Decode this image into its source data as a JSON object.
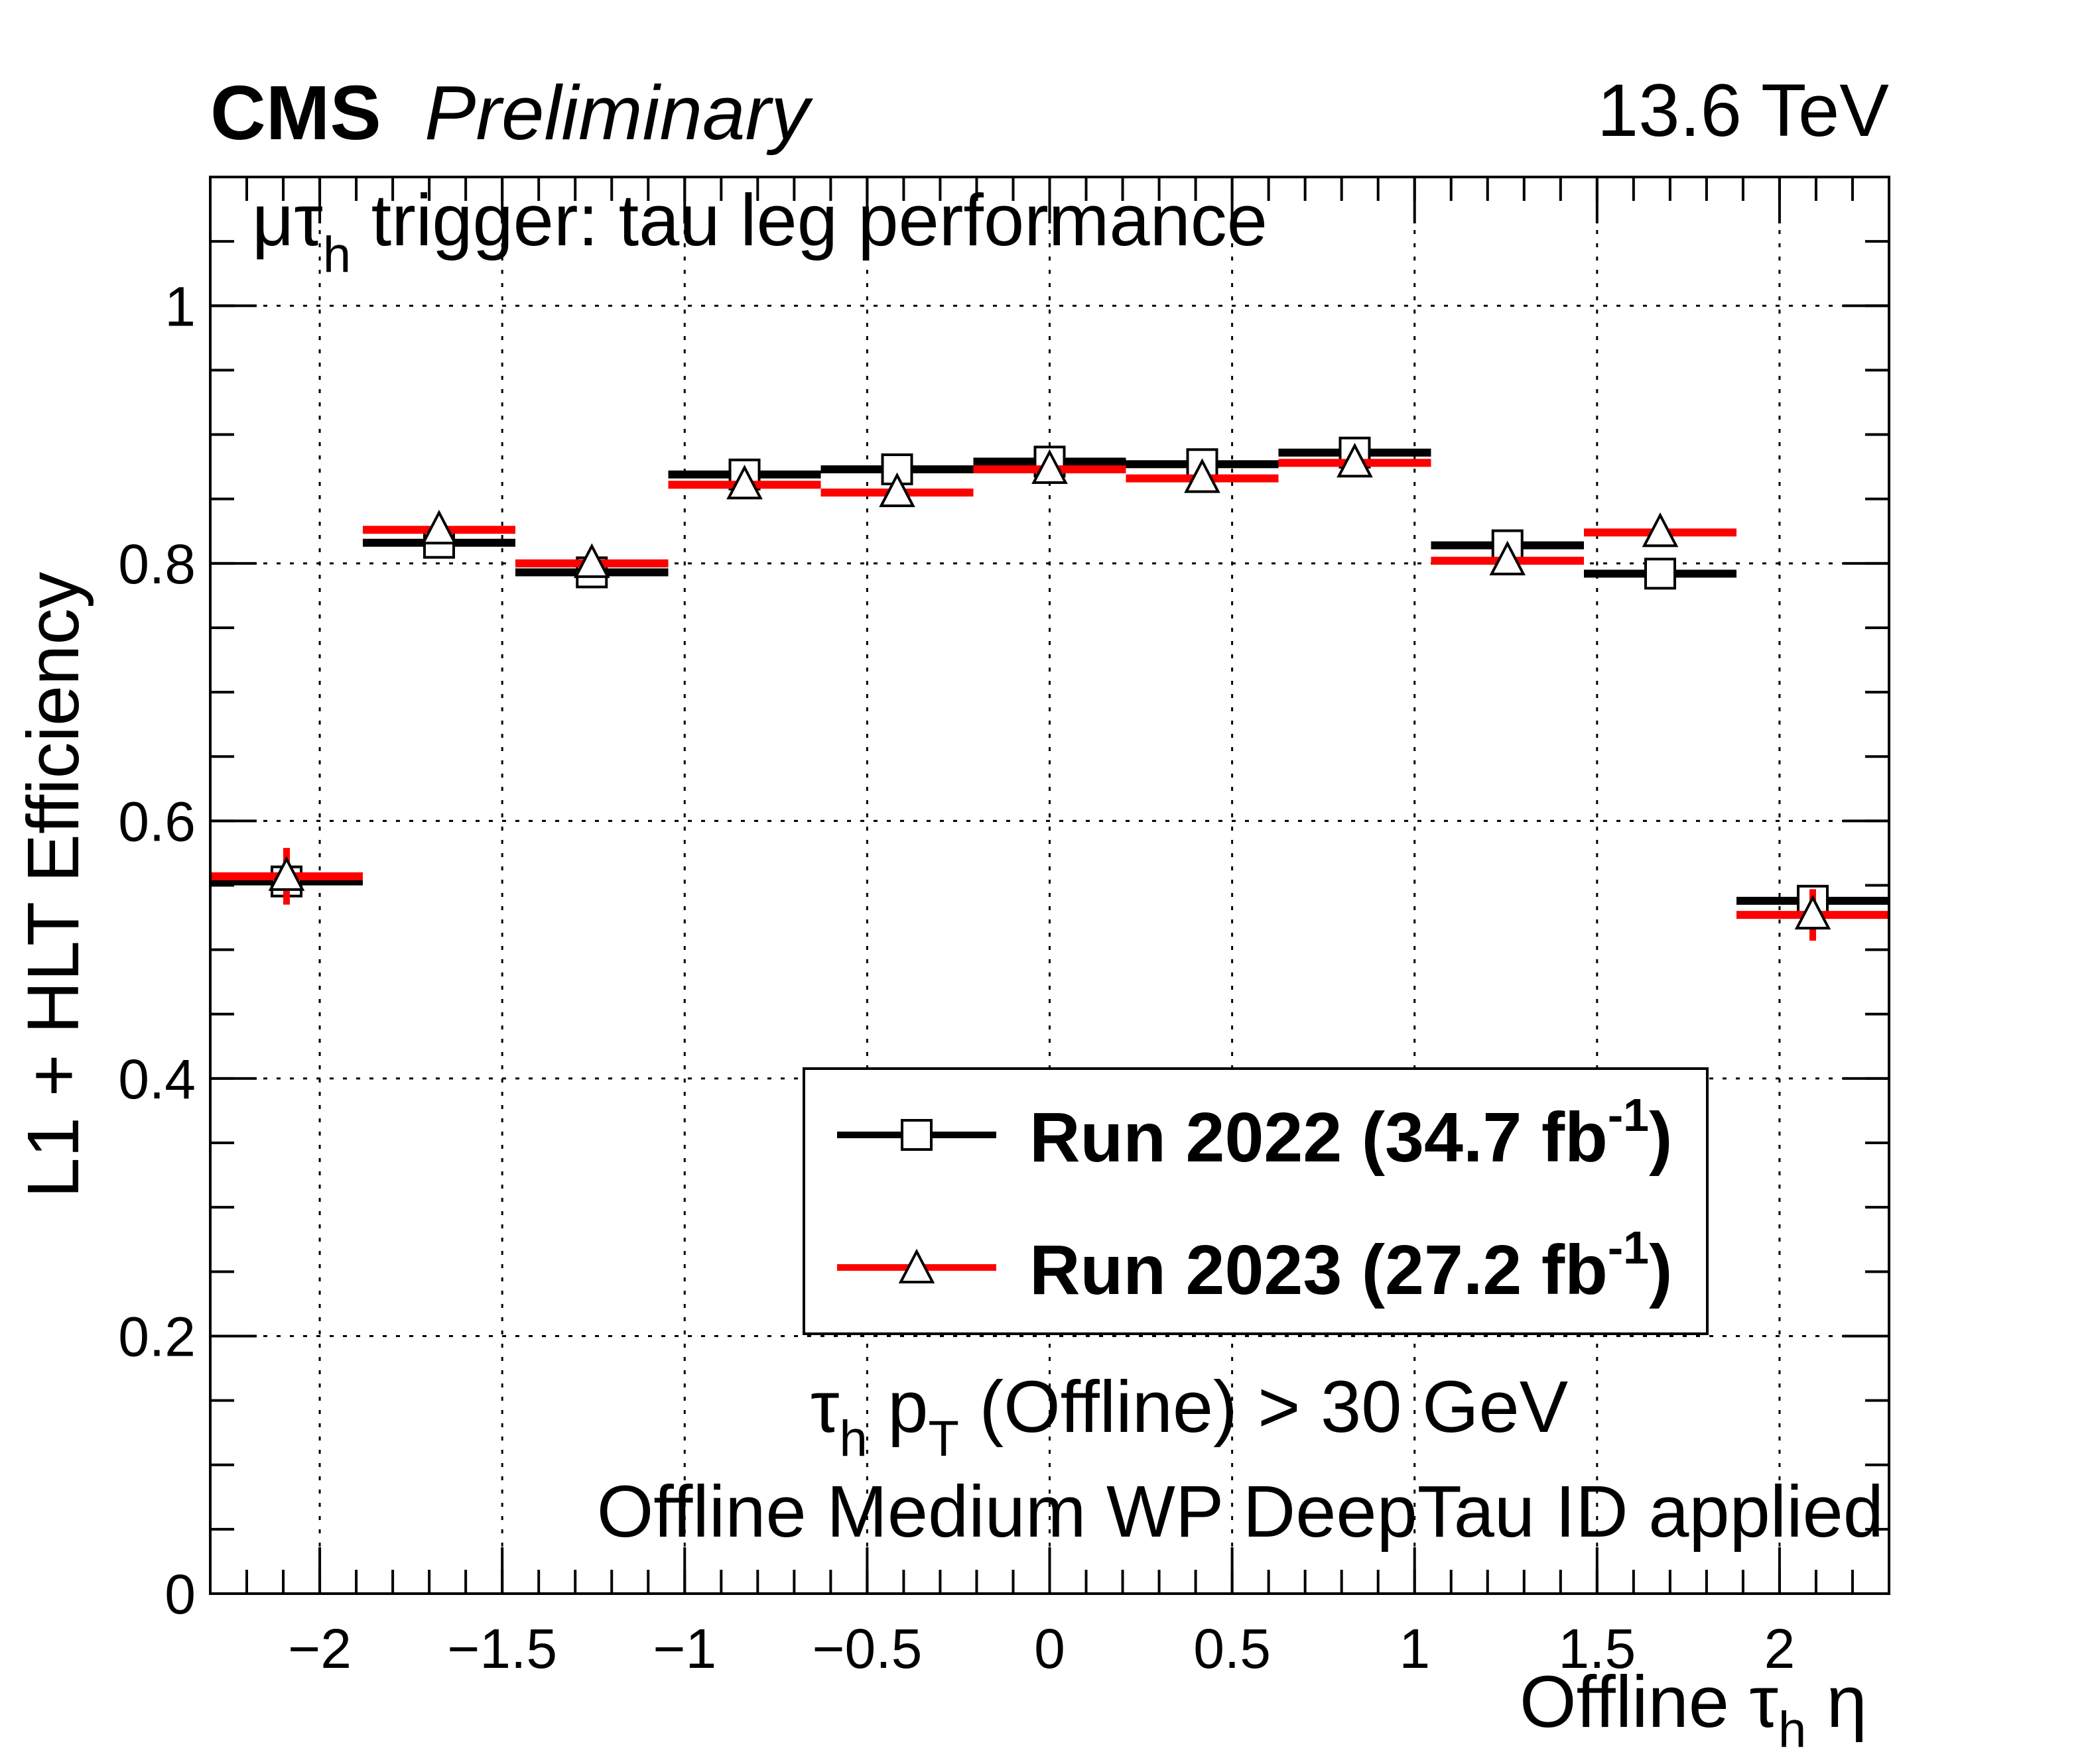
{
  "header": {
    "experiment": "CMS",
    "status": "Preliminary",
    "energy": "13.6 TeV"
  },
  "plot_title": {
    "prefix": "μτ",
    "sub": "h",
    "rest": " trigger: tau leg performance"
  },
  "annotations": {
    "line1": {
      "a": "τ",
      "a_sub": "h",
      "b": " p",
      "b_sub": "T",
      "c": " (Offline) > 30 GeV"
    },
    "line2": "Offline Medium WP DeepTau ID applied"
  },
  "chart_data": {
    "type": "scatter",
    "ylabel": "L1 + HLT Efficiency",
    "xlabel": {
      "a": "Offline τ",
      "sub": "h",
      "b": " η"
    },
    "xlim": [
      -2.3,
      2.3
    ],
    "ylim": [
      0,
      1.1
    ],
    "xticks": [
      -2,
      -1.5,
      -1,
      -0.5,
      0,
      0.5,
      1,
      1.5,
      2
    ],
    "xtick_labels": [
      "−2",
      "−1.5",
      "−1",
      "−0.5",
      "0",
      "0.5",
      "1",
      "1.5",
      "2"
    ],
    "yticks": [
      0,
      0.2,
      0.4,
      0.6,
      0.8,
      1
    ],
    "ytick_labels": [
      "0",
      "0.2",
      "0.4",
      "0.6",
      "0.8",
      "1"
    ],
    "grid": true,
    "bin_edges": [
      -2.3,
      -1.882,
      -1.464,
      -1.045,
      -0.627,
      -0.209,
      0.209,
      0.627,
      1.045,
      1.464,
      1.882,
      2.3
    ],
    "series": [
      {
        "name": "Run 2022 (34.7 fb⁻¹)",
        "label": "Run 2022 (34.7 fb",
        "exp": "-1",
        "close": ")",
        "color": "#000000",
        "marker": "open-square",
        "values": [
          0.553,
          0.816,
          0.793,
          0.869,
          0.873,
          0.879,
          0.877,
          0.886,
          0.814,
          0.792,
          0.538
        ],
        "errors": [
          0.01,
          0.006,
          0.006,
          0.005,
          0.005,
          0.005,
          0.005,
          0.005,
          0.006,
          0.006,
          0.01
        ]
      },
      {
        "name": "Run 2023 (27.2 fb⁻¹)",
        "label": "Run 2023 (27.2 fb",
        "exp": "-1",
        "close": ")",
        "color": "#ff0000",
        "marker": "open-triangle",
        "values": [
          0.557,
          0.826,
          0.8,
          0.861,
          0.855,
          0.873,
          0.866,
          0.878,
          0.802,
          0.824,
          0.527
        ],
        "errors": [
          0.022,
          0.007,
          0.007,
          0.006,
          0.006,
          0.006,
          0.006,
          0.006,
          0.007,
          0.007,
          0.02
        ]
      }
    ],
    "legend_position": "bottom-right"
  }
}
